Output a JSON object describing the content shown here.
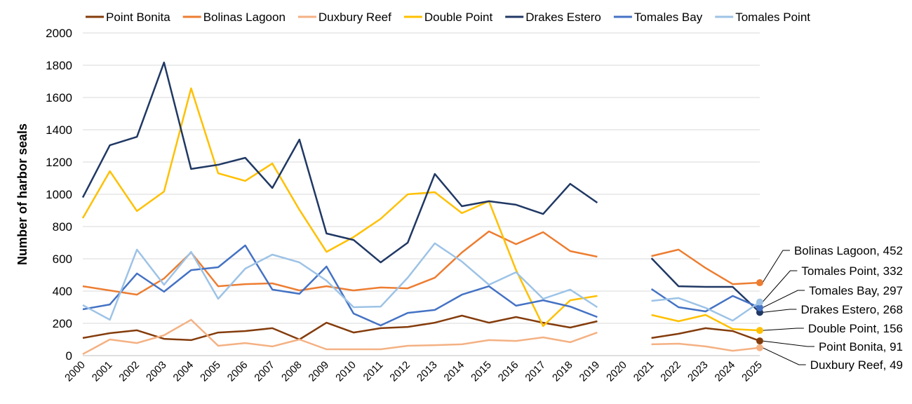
{
  "chart_data": {
    "type": "line",
    "title": "",
    "xlabel": "",
    "ylabel": "Number of harbor seals",
    "ylim": [
      0,
      2000
    ],
    "yticks": [
      0,
      200,
      400,
      600,
      800,
      1000,
      1200,
      1400,
      1600,
      1800,
      2000
    ],
    "grid": "horizontal",
    "legend": "top",
    "x": [
      2000,
      2001,
      2002,
      2003,
      2004,
      2005,
      2006,
      2007,
      2008,
      2009,
      2010,
      2011,
      2012,
      2013,
      2014,
      2015,
      2016,
      2017,
      2018,
      2019,
      2020,
      2021,
      2022,
      2023,
      2024,
      2025
    ],
    "series": [
      {
        "name": "Point Bonita",
        "color": "#843C0C",
        "label": "Point Bonita, 91",
        "values": [
          109,
          139,
          157,
          104,
          96,
          143,
          152,
          170,
          100,
          204,
          143,
          170,
          178,
          204,
          248,
          204,
          239,
          204,
          174,
          213,
          null,
          109,
          135,
          170,
          152,
          91
        ]
      },
      {
        "name": "Bolinas Lagoon",
        "color": "#ED7D31",
        "label": "Bolinas Lagoon, 452",
        "values": [
          430,
          404,
          378,
          478,
          639,
          430,
          443,
          448,
          404,
          430,
          404,
          422,
          417,
          483,
          639,
          770,
          691,
          765,
          648,
          613,
          null,
          617,
          657,
          543,
          443,
          452
        ]
      },
      {
        "name": "Duxbury Reef",
        "color": "#F4B183",
        "label": "Duxbury Reef, 49",
        "values": [
          9,
          100,
          78,
          126,
          222,
          61,
          78,
          57,
          100,
          39,
          39,
          39,
          61,
          65,
          70,
          96,
          91,
          113,
          83,
          143,
          null,
          70,
          74,
          57,
          30,
          49
        ]
      },
      {
        "name": "Double Point",
        "color": "#FFC000",
        "label": "Double Point, 156",
        "values": [
          852,
          1143,
          896,
          1017,
          1657,
          1130,
          1083,
          1191,
          904,
          643,
          735,
          848,
          1000,
          1013,
          883,
          957,
          530,
          183,
          343,
          370,
          null,
          252,
          213,
          252,
          165,
          156
        ]
      },
      {
        "name": "Drakes Estero",
        "color": "#203864",
        "label": "Drakes Estero, 268",
        "values": [
          980,
          1304,
          1356,
          1817,
          1157,
          1183,
          1226,
          1039,
          1339,
          757,
          717,
          578,
          700,
          1126,
          926,
          957,
          935,
          878,
          1065,
          948,
          null,
          604,
          430,
          426,
          426,
          268
        ]
      },
      {
        "name": "Tomales Bay",
        "color": "#4472C4",
        "label": "Tomales Bay, 297",
        "values": [
          287,
          317,
          509,
          396,
          530,
          548,
          683,
          409,
          383,
          552,
          261,
          187,
          265,
          283,
          378,
          430,
          309,
          343,
          304,
          239,
          null,
          413,
          300,
          274,
          370,
          297
        ]
      },
      {
        "name": "Tomales Point",
        "color": "#9DC3E6",
        "label": "Tomales Point, 332",
        "values": [
          313,
          222,
          657,
          439,
          643,
          352,
          539,
          626,
          578,
          465,
          300,
          304,
          483,
          696,
          583,
          439,
          517,
          352,
          409,
          300,
          null,
          339,
          357,
          296,
          217,
          332
        ]
      }
    ]
  }
}
